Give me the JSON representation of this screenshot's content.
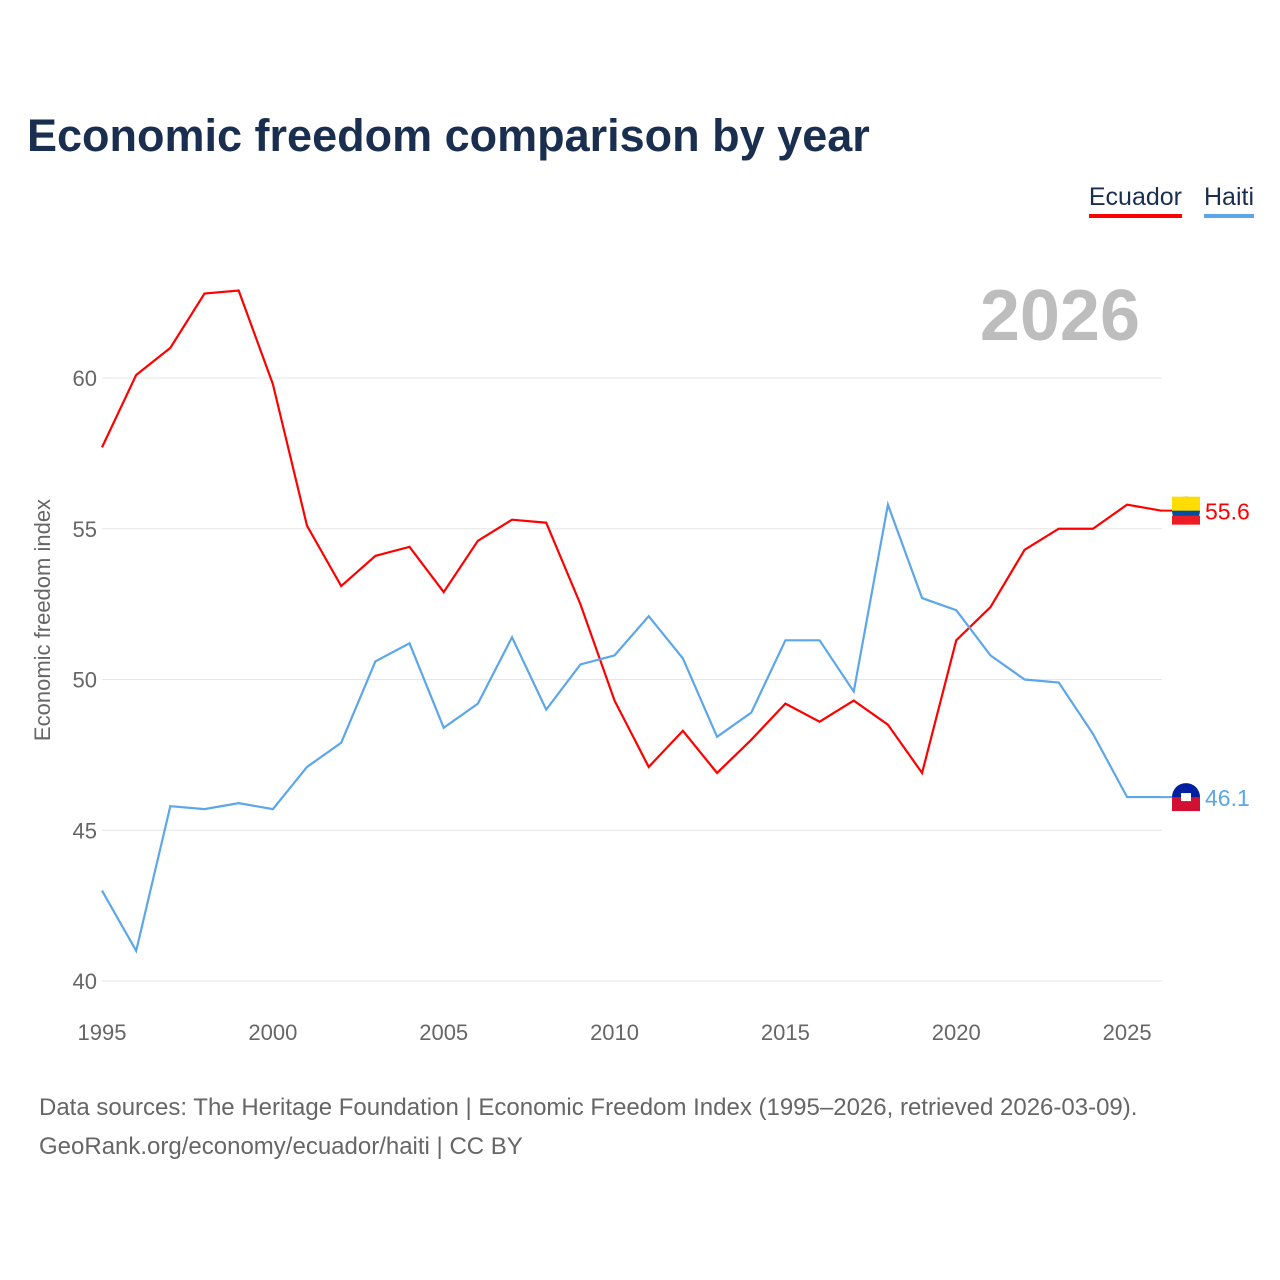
{
  "title": "Economic freedom comparison by year",
  "year_label": "2026",
  "sources": [
    "Data sources: The Heritage Foundation | Economic Freedom Index (1995–2026, retrieved 2026-03-09).",
    "GeoRank.org/economy/ecuador/haiti | CC BY"
  ],
  "chart_data": {
    "type": "line",
    "title": "Economic freedom comparison by year",
    "xlabel": "",
    "ylabel": "Economic freedom index",
    "xlim": [
      1995,
      2026
    ],
    "ylim": [
      40,
      63
    ],
    "xticks": [
      1995,
      2000,
      2005,
      2010,
      2015,
      2020,
      2025
    ],
    "yticks": [
      40,
      45,
      50,
      55,
      60
    ],
    "grid": true,
    "legend": "top-right",
    "x": [
      1995,
      1996,
      1997,
      1998,
      1999,
      2000,
      2001,
      2002,
      2003,
      2004,
      2005,
      2006,
      2007,
      2008,
      2009,
      2010,
      2011,
      2012,
      2013,
      2014,
      2015,
      2016,
      2017,
      2018,
      2019,
      2020,
      2021,
      2022,
      2023,
      2024,
      2025,
      2026
    ],
    "series": [
      {
        "name": "Ecuador",
        "color": "#ff0000",
        "end_label": "55.6",
        "values": [
          57.7,
          60.1,
          61.0,
          62.8,
          62.9,
          59.8,
          55.1,
          53.1,
          54.1,
          54.4,
          52.9,
          54.6,
          55.3,
          55.2,
          52.5,
          49.3,
          47.1,
          48.3,
          46.9,
          48.0,
          49.2,
          48.6,
          49.3,
          48.5,
          46.9,
          51.3,
          52.4,
          54.3,
          55.0,
          55.0,
          55.8,
          55.6
        ]
      },
      {
        "name": "Haiti",
        "color": "#5ca6ea",
        "end_label": "46.1",
        "values": [
          43.0,
          41.0,
          45.8,
          45.7,
          45.9,
          45.7,
          47.1,
          47.9,
          50.6,
          51.2,
          48.4,
          49.2,
          51.4,
          49.0,
          50.5,
          50.8,
          52.1,
          50.7,
          48.1,
          48.9,
          51.3,
          51.3,
          49.6,
          55.8,
          52.7,
          52.3,
          50.8,
          50.0,
          49.9,
          48.2,
          46.1,
          46.1
        ]
      }
    ]
  }
}
